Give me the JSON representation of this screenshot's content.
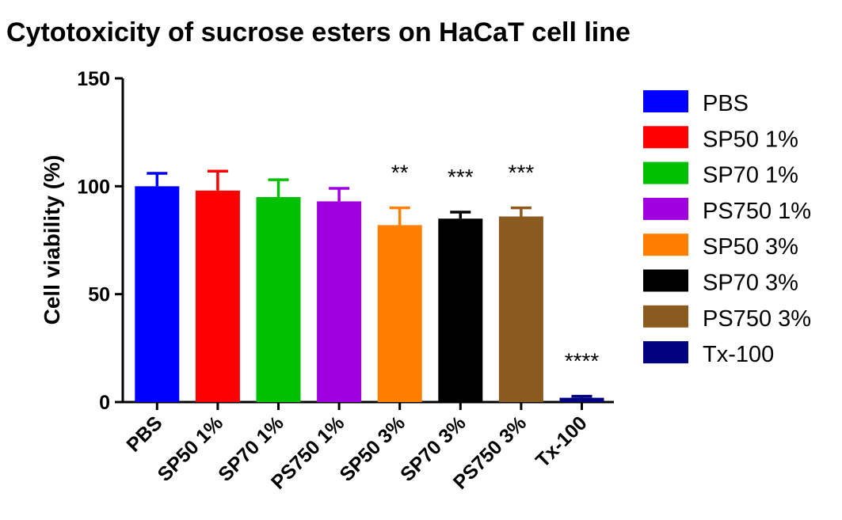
{
  "chart_data": {
    "type": "bar",
    "title": "Cytotoxicity of sucrose esters on HaCaT cell line",
    "xlabel": "",
    "ylabel": "Cell viability (%)",
    "ylim": [
      0,
      150
    ],
    "yticks": [
      0,
      50,
      100,
      150
    ],
    "categories": [
      "PBS",
      "SP50 1%",
      "SP70 1%",
      "PS750 1%",
      "SP50 3%",
      "SP70 3%",
      "PS750 3%",
      "Tx-100"
    ],
    "values": [
      100,
      98,
      95,
      93,
      82,
      85,
      86,
      2
    ],
    "errors": [
      6,
      9,
      8,
      6,
      8,
      3,
      4,
      0.7
    ],
    "colors": [
      "#0000ff",
      "#ff0000",
      "#00c000",
      "#a000e0",
      "#ff8000",
      "#000000",
      "#8b5a1e",
      "#000080"
    ],
    "significance": [
      "",
      "",
      "",
      "",
      "**",
      "***",
      "***",
      "****"
    ],
    "legend": {
      "position": "right",
      "entries": [
        "PBS",
        "SP50 1%",
        "SP70 1%",
        "PS750 1%",
        "SP50 3%",
        "SP70 3%",
        "PS750 3%",
        "Tx-100"
      ]
    },
    "grid": false
  }
}
